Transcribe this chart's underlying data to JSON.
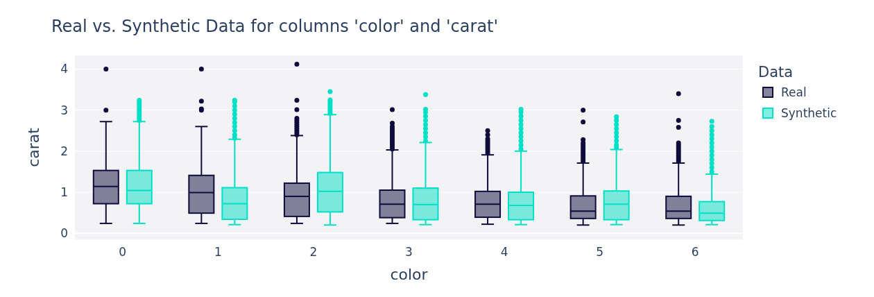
{
  "chart_data": {
    "type": "box",
    "title": "Real vs. Synthetic Data for columns 'color' and 'carat'",
    "xlabel": "color",
    "ylabel": "carat",
    "legend_title": "Data",
    "categories": [
      "0",
      "1",
      "2",
      "3",
      "4",
      "5",
      "6"
    ],
    "ylim": [
      -0.15,
      4.33
    ],
    "yticks": [
      0,
      1,
      2,
      3,
      4
    ],
    "grid": "y",
    "legend": "right",
    "series": [
      {
        "name": "Real",
        "color": "#0f0c3c",
        "boxes": [
          {
            "low": 0.24,
            "q1": 0.72,
            "median": 1.14,
            "q3": 1.53,
            "high": 2.72,
            "outliers": [
              3.0,
              4.0
            ]
          },
          {
            "low": 0.24,
            "q1": 0.49,
            "median": 0.99,
            "q3": 1.41,
            "high": 2.6,
            "outliers": [
              3.0,
              3.03,
              3.22,
              4.0
            ]
          },
          {
            "low": 0.24,
            "q1": 0.41,
            "median": 0.9,
            "q3": 1.22,
            "high": 2.38,
            "outliers": [
              2.4,
              2.45,
              2.5,
              2.55,
              2.6,
              2.65,
              2.7,
              2.75,
              2.8,
              3.01,
              3.24,
              4.12
            ]
          },
          {
            "low": 0.24,
            "q1": 0.38,
            "median": 0.71,
            "q3": 1.05,
            "high": 2.03,
            "outliers": [
              2.05,
              2.1,
              2.15,
              2.2,
              2.25,
              2.3,
              2.35,
              2.4,
              2.45,
              2.5,
              2.55,
              2.6,
              2.68,
              3.01
            ]
          },
          {
            "low": 0.22,
            "q1": 0.39,
            "median": 0.71,
            "q3": 1.02,
            "high": 1.91,
            "outliers": [
              1.95,
              2.0,
              2.05,
              2.1,
              2.15,
              2.2,
              2.25,
              2.3,
              2.4,
              2.5
            ]
          },
          {
            "low": 0.2,
            "q1": 0.36,
            "median": 0.54,
            "q3": 0.91,
            "high": 1.71,
            "outliers": [
              1.75,
              1.8,
              1.85,
              1.9,
              1.95,
              2.0,
              2.05,
              2.1,
              2.15,
              2.2,
              2.28,
              2.71,
              3.0
            ]
          },
          {
            "low": 0.2,
            "q1": 0.36,
            "median": 0.54,
            "q3": 0.9,
            "high": 1.71,
            "outliers": [
              1.75,
              1.8,
              1.85,
              1.9,
              1.95,
              2.0,
              2.05,
              2.1,
              2.15,
              2.2,
              2.58,
              2.75,
              3.4
            ]
          }
        ]
      },
      {
        "name": "Synthetic",
        "color": "#00e0c6",
        "boxes": [
          {
            "low": 0.24,
            "q1": 0.72,
            "median": 1.04,
            "q3": 1.53,
            "high": 2.72,
            "outliers": [
              2.75,
              2.8,
              2.85,
              2.9,
              2.95,
              3.0,
              3.05,
              3.1,
              3.15,
              3.2,
              3.24
            ]
          },
          {
            "low": 0.21,
            "q1": 0.34,
            "median": 0.72,
            "q3": 1.11,
            "high": 2.29,
            "outliers": [
              2.32,
              2.4,
              2.5,
              2.6,
              2.7,
              2.8,
              2.9,
              3.0,
              3.1,
              3.2,
              3.24
            ]
          },
          {
            "low": 0.2,
            "q1": 0.52,
            "median": 1.02,
            "q3": 1.48,
            "high": 2.89,
            "outliers": [
              2.92,
              2.97,
              3.02,
              3.07,
              3.12,
              3.17,
              3.22,
              3.25,
              3.45
            ]
          },
          {
            "low": 0.21,
            "q1": 0.33,
            "median": 0.7,
            "q3": 1.1,
            "high": 2.21,
            "outliers": [
              2.25,
              2.35,
              2.45,
              2.55,
              2.65,
              2.75,
              2.85,
              2.95,
              3.02,
              3.38
            ]
          },
          {
            "low": 0.21,
            "q1": 0.33,
            "median": 0.68,
            "q3": 1.0,
            "high": 2.0,
            "outliers": [
              2.05,
              2.15,
              2.25,
              2.35,
              2.45,
              2.55,
              2.65,
              2.75,
              2.85,
              2.95,
              3.02
            ]
          },
          {
            "low": 0.21,
            "q1": 0.33,
            "median": 0.71,
            "q3": 1.03,
            "high": 2.04,
            "outliers": [
              2.08,
              2.15,
              2.25,
              2.35,
              2.45,
              2.55,
              2.65,
              2.75,
              2.84
            ]
          },
          {
            "low": 0.21,
            "q1": 0.31,
            "median": 0.49,
            "q3": 0.77,
            "high": 1.44,
            "outliers": [
              1.5,
              1.6,
              1.7,
              1.8,
              1.9,
              2.0,
              2.1,
              2.2,
              2.3,
              2.4,
              2.5,
              2.6,
              2.73
            ]
          }
        ]
      }
    ]
  }
}
